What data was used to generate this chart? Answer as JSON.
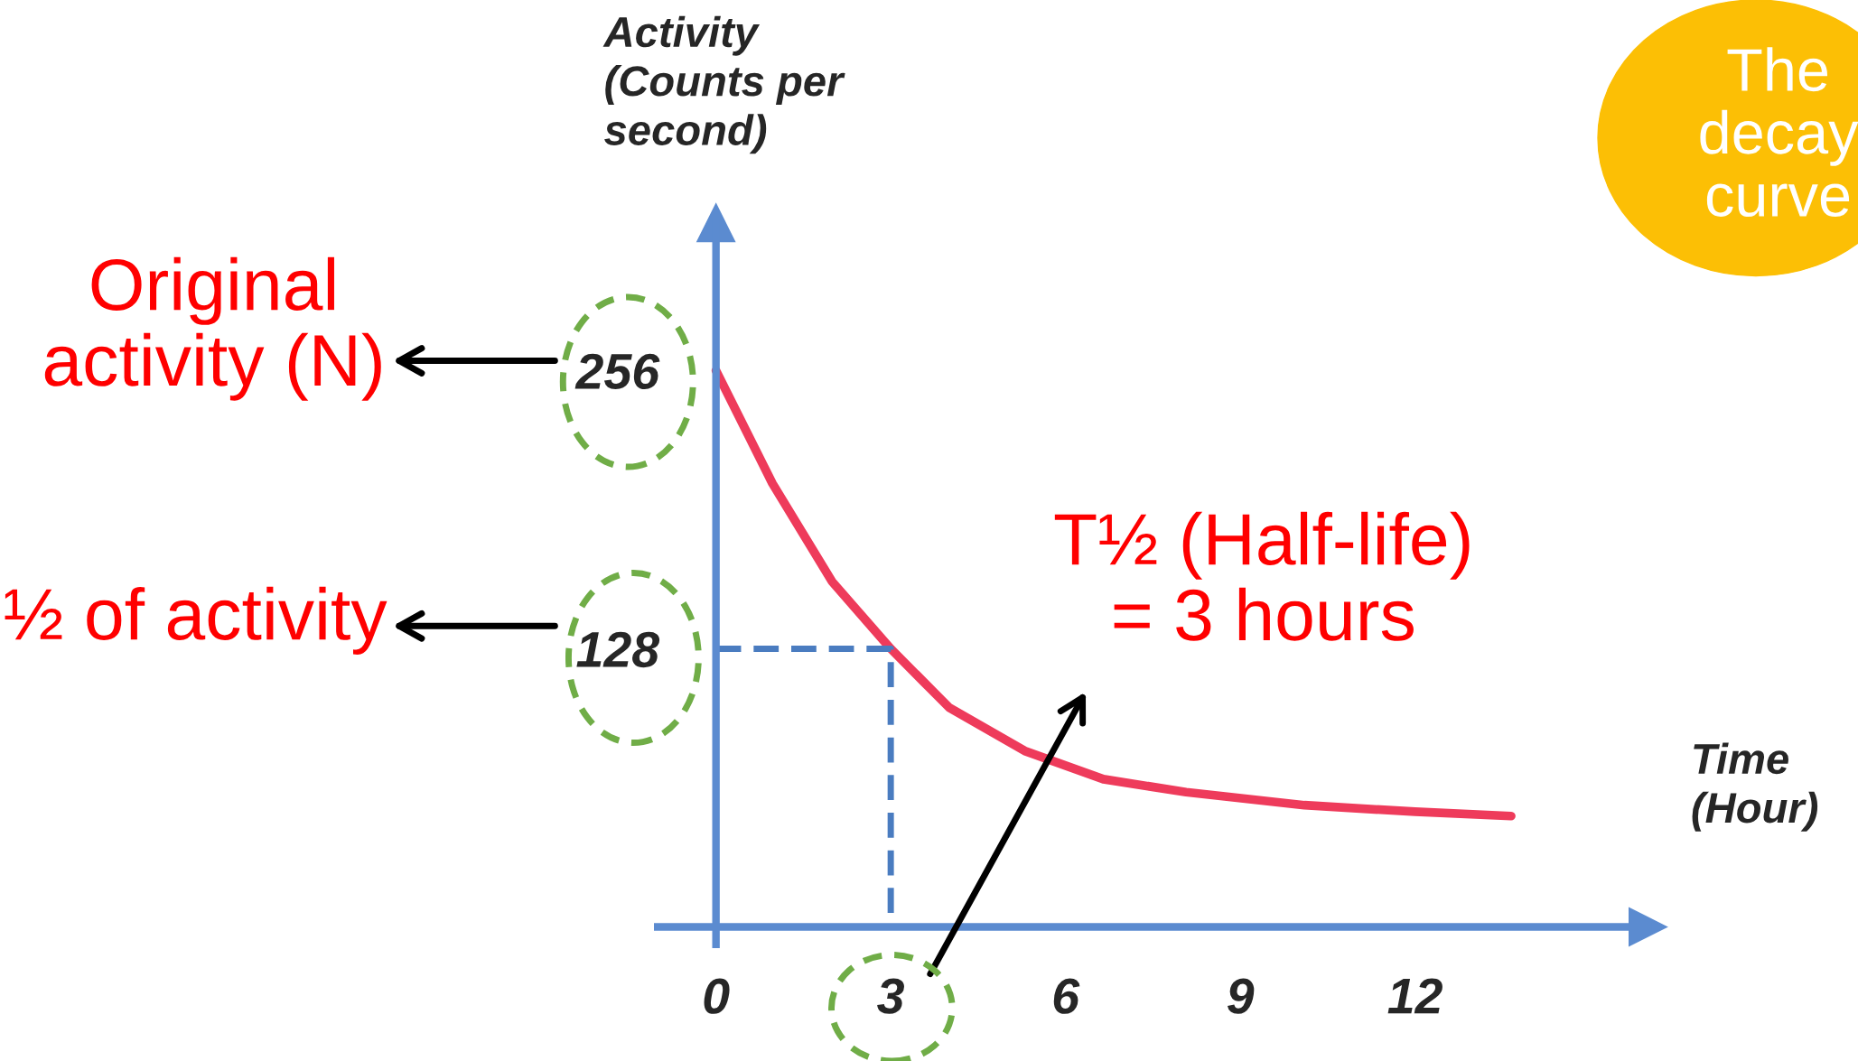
{
  "chart_data": {
    "type": "line",
    "title": "The decay curve",
    "xlabel": "Time\n(Hour)",
    "ylabel": "Activity\n(Counts per\nsecond)",
    "series": [
      {
        "color": "#ee3b5b",
        "x": [
          0,
          0.97,
          1.99,
          3,
          4,
          5.3,
          6.65,
          8.07,
          10.1,
          12,
          13.65
        ],
        "values": [
          256,
          204,
          159,
          128,
          101,
          81,
          68,
          62,
          56,
          53,
          51
        ]
      },
      {
        "color": "#4a7cc0",
        "line_style": "dashed",
        "x": [
          0,
          3,
          3
        ],
        "values": [
          128,
          128,
          0
        ]
      }
    ],
    "xlim": [
      -1,
      16
    ],
    "ylim": [
      -8,
      324
    ],
    "xticks": [
      0,
      3,
      6,
      9,
      12
    ],
    "yticks": [
      128,
      256
    ],
    "annotations": [
      "Original activity (N)",
      "½ of activity",
      "T½ (Half-life) = 3 hours"
    ],
    "grid": false,
    "legend": false
  }
}
